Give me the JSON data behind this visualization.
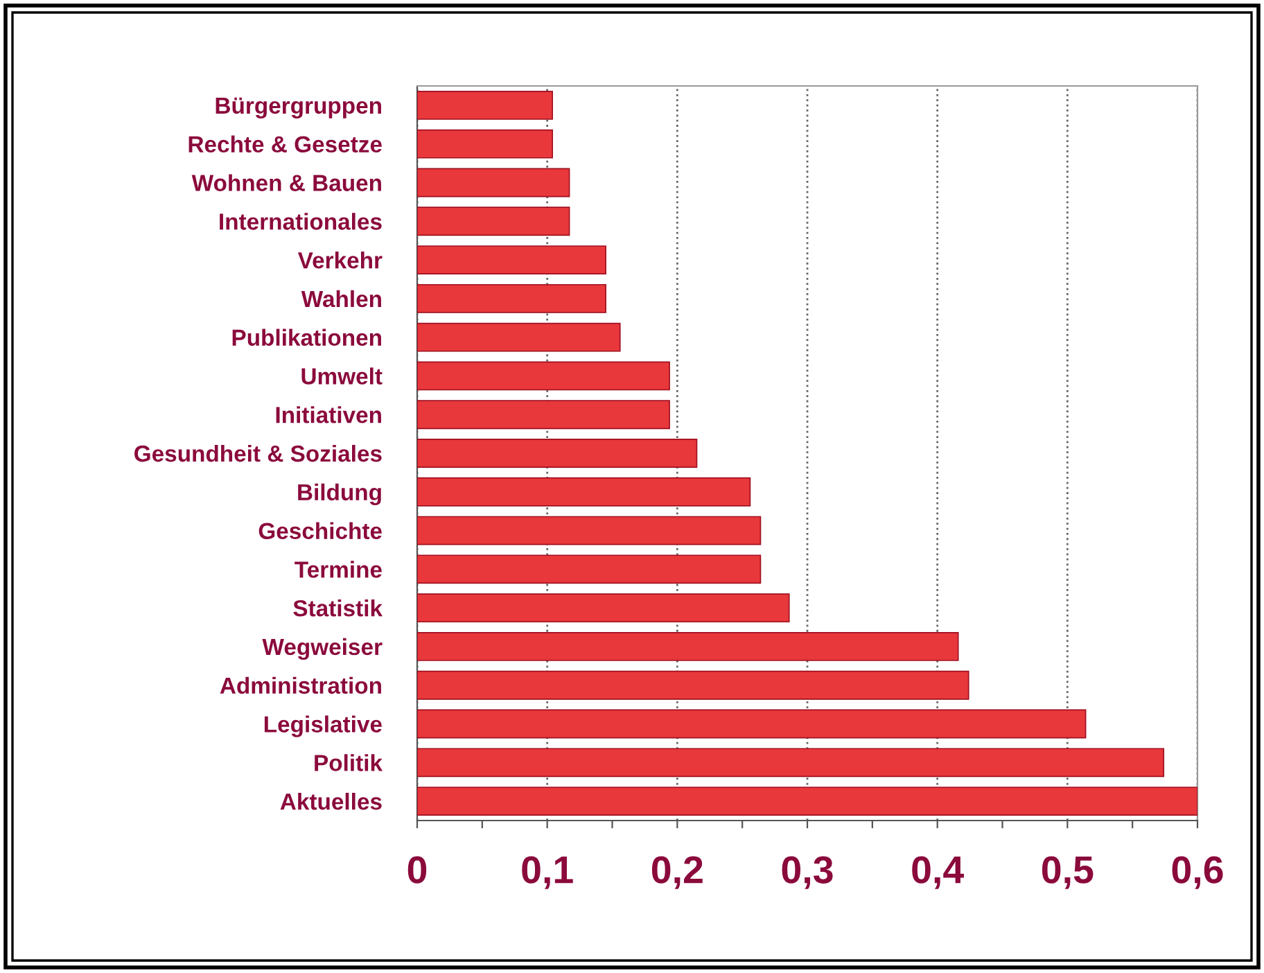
{
  "chart_data": {
    "type": "bar",
    "orientation": "horizontal",
    "categories": [
      "Bürgergruppen",
      "Rechte & Gesetze",
      "Wohnen & Bauen",
      "Internationales",
      "Verkehr",
      "Wahlen",
      "Publikationen",
      "Umwelt",
      "Initiativen",
      "Gesundheit & Soziales",
      "Bildung",
      "Geschichte",
      "Termine",
      "Statistik",
      "Wegweiser",
      "Administration",
      "Legislative",
      "Politik",
      "Aktuelles"
    ],
    "values": [
      0.104,
      0.104,
      0.117,
      0.117,
      0.145,
      0.145,
      0.156,
      0.194,
      0.194,
      0.215,
      0.256,
      0.264,
      0.264,
      0.286,
      0.416,
      0.424,
      0.514,
      0.574,
      0.6
    ],
    "color": "#e8383c",
    "xlim": [
      0,
      0.6
    ],
    "xticks": [
      0,
      {
        "value": 0.05,
        "label": null
      },
      {
        "value": 0.1,
        "label": "0,1"
      },
      {
        "value": 0.15,
        "label": null
      },
      {
        "value": 0.2,
        "label": "0,2"
      },
      {
        "value": 0.25,
        "label": null
      },
      {
        "value": 0.3,
        "label": "0,3"
      },
      {
        "value": 0.35,
        "label": null
      },
      {
        "value": 0.4,
        "label": "0,4"
      },
      {
        "value": 0.45,
        "label": null
      },
      {
        "value": 0.5,
        "label": "0,5"
      },
      {
        "value": 0.55,
        "label": null
      },
      {
        "value": 0.6,
        "label": "0,6"
      }
    ],
    "grid": "x"
  }
}
